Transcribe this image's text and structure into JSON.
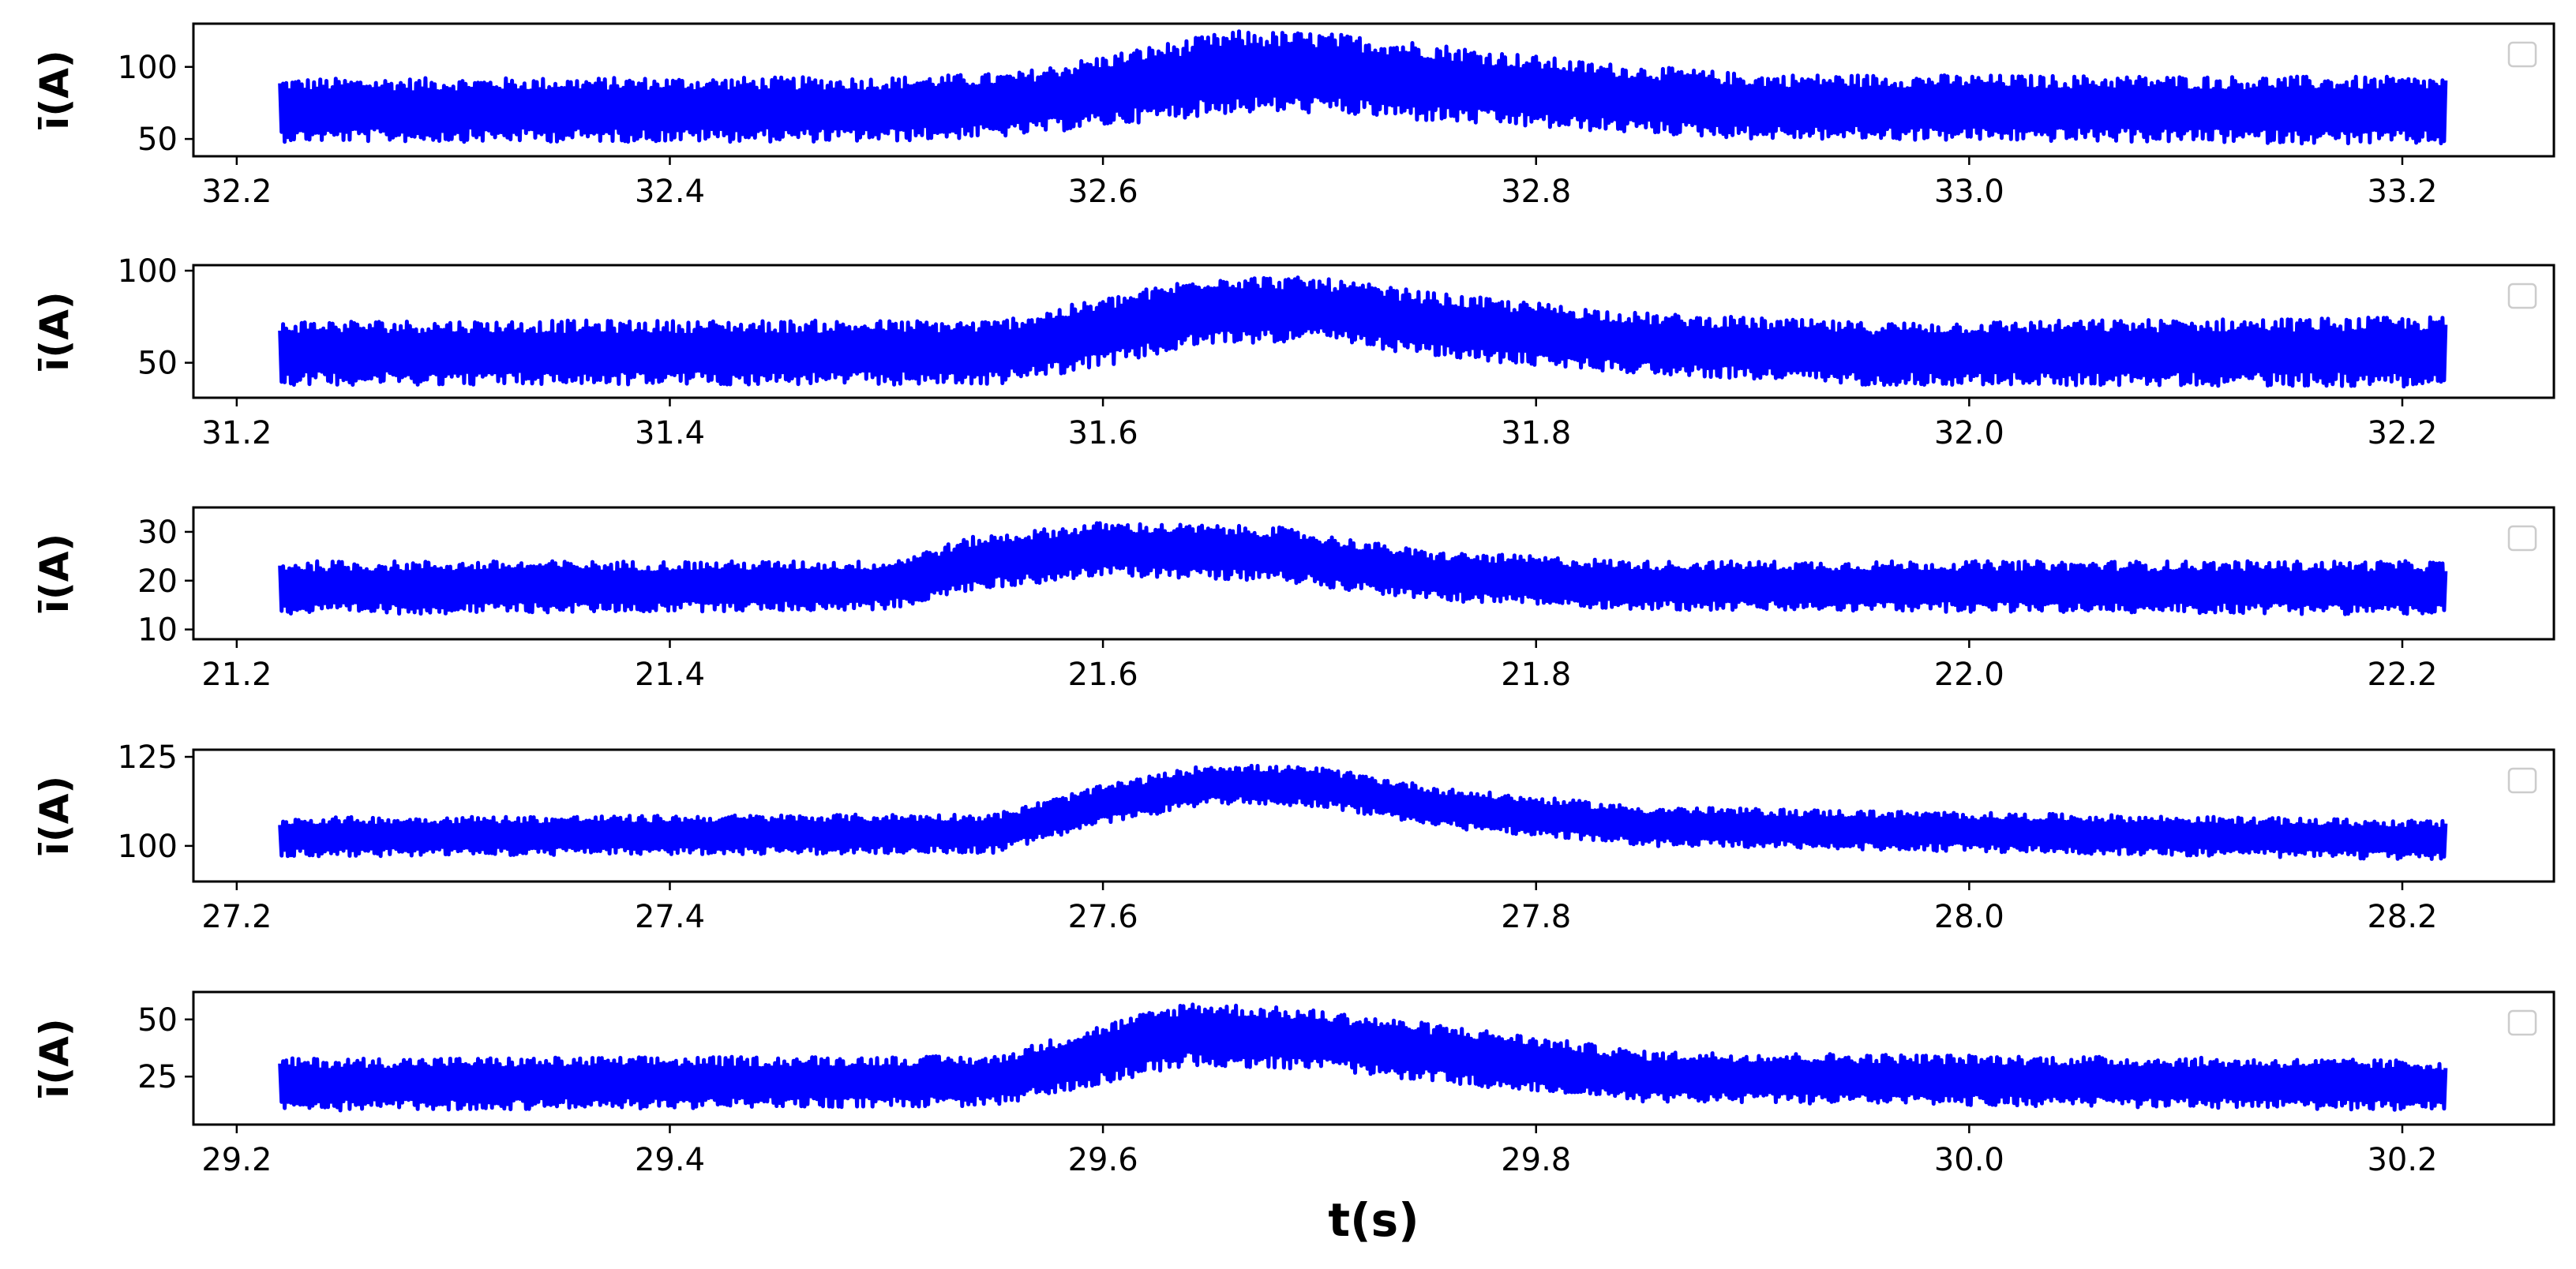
{
  "chart_data": [
    {
      "type": "line",
      "ylabel": "ī(A)",
      "xlabel": "",
      "color": "#0000ff",
      "xlim": [
        32.18,
        33.27
      ],
      "ylim": [
        38,
        130
      ],
      "xticks": [
        32.2,
        32.4,
        32.6,
        32.8,
        33.0,
        33.2
      ],
      "xtick_labels": [
        "32.2",
        "32.4",
        "32.6",
        "32.8",
        "33.0",
        "33.2"
      ],
      "yticks": [
        50,
        100
      ],
      "ytick_labels": [
        "50",
        "100"
      ],
      "x_start": 32.22,
      "x_end": 33.22,
      "envelope": [
        {
          "x": 32.22,
          "lo": 48,
          "hi": 92
        },
        {
          "x": 32.5,
          "lo": 48,
          "hi": 93
        },
        {
          "x": 32.56,
          "lo": 52,
          "hi": 96
        },
        {
          "x": 32.62,
          "lo": 62,
          "hi": 114
        },
        {
          "x": 32.66,
          "lo": 68,
          "hi": 125
        },
        {
          "x": 32.7,
          "lo": 68,
          "hi": 124
        },
        {
          "x": 32.75,
          "lo": 62,
          "hi": 117
        },
        {
          "x": 32.82,
          "lo": 56,
          "hi": 104
        },
        {
          "x": 32.9,
          "lo": 50,
          "hi": 95
        },
        {
          "x": 33.22,
          "lo": 46,
          "hi": 93
        }
      ],
      "legend": "empty box, upper-right"
    },
    {
      "type": "line",
      "ylabel": "ī(A)",
      "xlabel": "",
      "color": "#0000ff",
      "xlim": [
        31.18,
        32.27
      ],
      "ylim": [
        31,
        103
      ],
      "xticks": [
        31.2,
        31.4,
        31.6,
        31.8,
        32.0,
        32.2
      ],
      "xtick_labels": [
        "31.2",
        "31.4",
        "31.6",
        "31.8",
        "32.0",
        "32.2"
      ],
      "yticks": [
        50,
        100
      ],
      "ytick_labels": [
        "50",
        "100"
      ],
      "x_start": 31.22,
      "x_end": 32.22,
      "envelope": [
        {
          "x": 31.22,
          "lo": 38,
          "hi": 73
        },
        {
          "x": 31.55,
          "lo": 38,
          "hi": 73
        },
        {
          "x": 31.6,
          "lo": 48,
          "hi": 85
        },
        {
          "x": 31.65,
          "lo": 60,
          "hi": 98
        },
        {
          "x": 31.7,
          "lo": 62,
          "hi": 96
        },
        {
          "x": 31.76,
          "lo": 52,
          "hi": 87
        },
        {
          "x": 31.85,
          "lo": 44,
          "hi": 77
        },
        {
          "x": 31.95,
          "lo": 38,
          "hi": 72
        },
        {
          "x": 32.22,
          "lo": 37,
          "hi": 75
        }
      ],
      "legend": "empty box, upper-right"
    },
    {
      "type": "line",
      "ylabel": "ī(A)",
      "xlabel": "",
      "color": "#0000ff",
      "xlim": [
        21.18,
        22.27
      ],
      "ylim": [
        8,
        35
      ],
      "xticks": [
        21.2,
        21.4,
        21.6,
        21.8,
        22.0,
        22.2
      ],
      "xtick_labels": [
        "21.2",
        "21.4",
        "21.6",
        "21.8",
        "22.0",
        "22.2"
      ],
      "yticks": [
        10,
        20,
        30
      ],
      "ytick_labels": [
        "10",
        "20",
        "30"
      ],
      "x_start": 21.22,
      "x_end": 22.22,
      "envelope": [
        {
          "x": 21.22,
          "lo": 13,
          "hi": 24
        },
        {
          "x": 21.5,
          "lo": 14,
          "hi": 24
        },
        {
          "x": 21.54,
          "lo": 18,
          "hi": 29
        },
        {
          "x": 21.6,
          "lo": 21,
          "hi": 32
        },
        {
          "x": 21.68,
          "lo": 20,
          "hi": 31
        },
        {
          "x": 21.75,
          "lo": 16,
          "hi": 26
        },
        {
          "x": 21.85,
          "lo": 14,
          "hi": 24
        },
        {
          "x": 22.22,
          "lo": 13,
          "hi": 24
        }
      ],
      "legend": "empty box, upper-right"
    },
    {
      "type": "line",
      "ylabel": "ī(A)",
      "xlabel": "",
      "color": "#0000ff",
      "xlim": [
        27.18,
        28.27
      ],
      "ylim": [
        90,
        127
      ],
      "xticks": [
        27.2,
        27.4,
        27.6,
        27.8,
        28.0,
        28.2
      ],
      "xtick_labels": [
        "27.2",
        "27.4",
        "27.6",
        "27.8",
        "28.0",
        "28.2"
      ],
      "yticks": [
        100,
        125
      ],
      "ytick_labels": [
        "100",
        "125"
      ],
      "x_start": 27.22,
      "x_end": 28.22,
      "envelope": [
        {
          "x": 27.22,
          "lo": 97,
          "hi": 108
        },
        {
          "x": 27.55,
          "lo": 98,
          "hi": 109
        },
        {
          "x": 27.6,
          "lo": 106,
          "hi": 117
        },
        {
          "x": 27.65,
          "lo": 112,
          "hi": 123
        },
        {
          "x": 27.7,
          "lo": 111,
          "hi": 122
        },
        {
          "x": 27.76,
          "lo": 105,
          "hi": 116
        },
        {
          "x": 27.85,
          "lo": 100,
          "hi": 111
        },
        {
          "x": 28.22,
          "lo": 96,
          "hi": 107
        }
      ],
      "legend": "empty box, upper-right"
    },
    {
      "type": "line",
      "ylabel": "ī(A)",
      "xlabel": "t(s)",
      "color": "#0000ff",
      "xlim": [
        29.18,
        30.27
      ],
      "ylim": [
        4,
        62
      ],
      "xticks": [
        29.2,
        29.4,
        29.6,
        29.8,
        30.0,
        30.2
      ],
      "xtick_labels": [
        "29.2",
        "29.4",
        "29.6",
        "29.8",
        "30.0",
        "30.2"
      ],
      "yticks": [
        25,
        50
      ],
      "ytick_labels": [
        "25",
        "50"
      ],
      "x_start": 29.22,
      "x_end": 30.22,
      "envelope": [
        {
          "x": 29.22,
          "lo": 10,
          "hi": 33
        },
        {
          "x": 29.55,
          "lo": 12,
          "hi": 34
        },
        {
          "x": 29.6,
          "lo": 22,
          "hi": 48
        },
        {
          "x": 29.64,
          "lo": 30,
          "hi": 58
        },
        {
          "x": 29.7,
          "lo": 28,
          "hi": 54
        },
        {
          "x": 29.78,
          "lo": 20,
          "hi": 45
        },
        {
          "x": 29.85,
          "lo": 14,
          "hi": 36
        },
        {
          "x": 30.22,
          "lo": 10,
          "hi": 32
        }
      ],
      "legend": "empty box, upper-right"
    }
  ]
}
